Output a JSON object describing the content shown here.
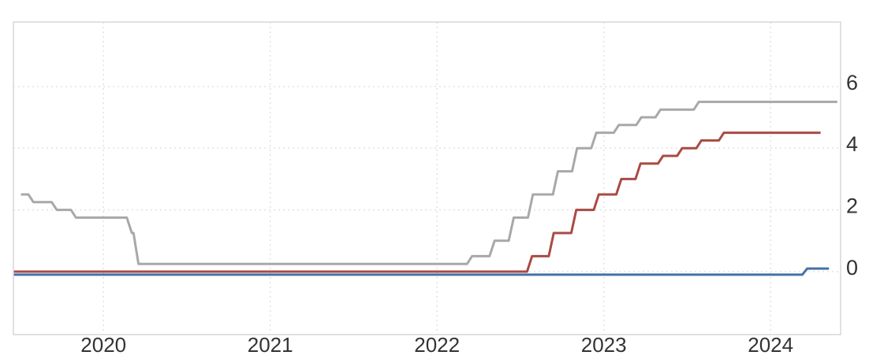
{
  "chart": {
    "background": "#ffffff",
    "plot_border_color": "#d7d7d7",
    "grid_color": "#e4e4e4",
    "label_color": "#333333"
  },
  "chart_data": {
    "type": "line",
    "line_style": "step",
    "title": "",
    "subtitle": "",
    "xlabel": "",
    "ylabel": "",
    "legend": "none",
    "grid": "dotted",
    "x_axis": {
      "tick_labels": [
        "2020",
        "2021",
        "2022",
        "2023",
        "2024"
      ],
      "tick_values": [
        2020,
        2021,
        2022,
        2023,
        2024
      ],
      "range": [
        2019.46,
        2024.42
      ]
    },
    "y_axis": {
      "side": "right",
      "tick_labels": [
        "0",
        "2",
        "4",
        "6"
      ],
      "tick_values": [
        0,
        2,
        4,
        6
      ],
      "range": [
        -2.05,
        8.1
      ]
    },
    "series": [
      {
        "name": "gray-line",
        "color": "#a8a8a8",
        "start": [
          2019.505,
          2.5
        ],
        "changes": [
          [
            2019.58,
            2.25
          ],
          [
            2019.72,
            2.0
          ],
          [
            2019.835,
            1.75
          ],
          [
            2020.17,
            1.25
          ],
          [
            2020.21,
            0.25
          ],
          [
            2022.21,
            0.5
          ],
          [
            2022.345,
            1.0
          ],
          [
            2022.46,
            1.75
          ],
          [
            2022.575,
            2.5
          ],
          [
            2022.725,
            3.25
          ],
          [
            2022.84,
            4.0
          ],
          [
            2022.955,
            4.5
          ],
          [
            2023.09,
            4.75
          ],
          [
            2023.225,
            5.0
          ],
          [
            2023.34,
            5.25
          ],
          [
            2023.57,
            5.5
          ]
        ],
        "end_x": 2024.4,
        "end_value": 5.5
      },
      {
        "name": "red-line",
        "color": "#aa4a44",
        "start": [
          2019.46,
          0.0
        ],
        "changes": [
          [
            2022.57,
            0.5
          ],
          [
            2022.7,
            1.25
          ],
          [
            2022.835,
            2.0
          ],
          [
            2022.97,
            2.5
          ],
          [
            2023.105,
            3.0
          ],
          [
            2023.22,
            3.5
          ],
          [
            2023.355,
            3.75
          ],
          [
            2023.47,
            4.0
          ],
          [
            2023.585,
            4.25
          ],
          [
            2023.72,
            4.5
          ]
        ],
        "end_x": 2024.3,
        "end_value": 4.5
      },
      {
        "name": "blue-line",
        "color": "#4572a7",
        "start": [
          2019.46,
          -0.1
        ],
        "changes": [
          [
            2024.22,
            0.1
          ]
        ],
        "end_x": 2024.35,
        "end_value": 0.1
      }
    ]
  }
}
